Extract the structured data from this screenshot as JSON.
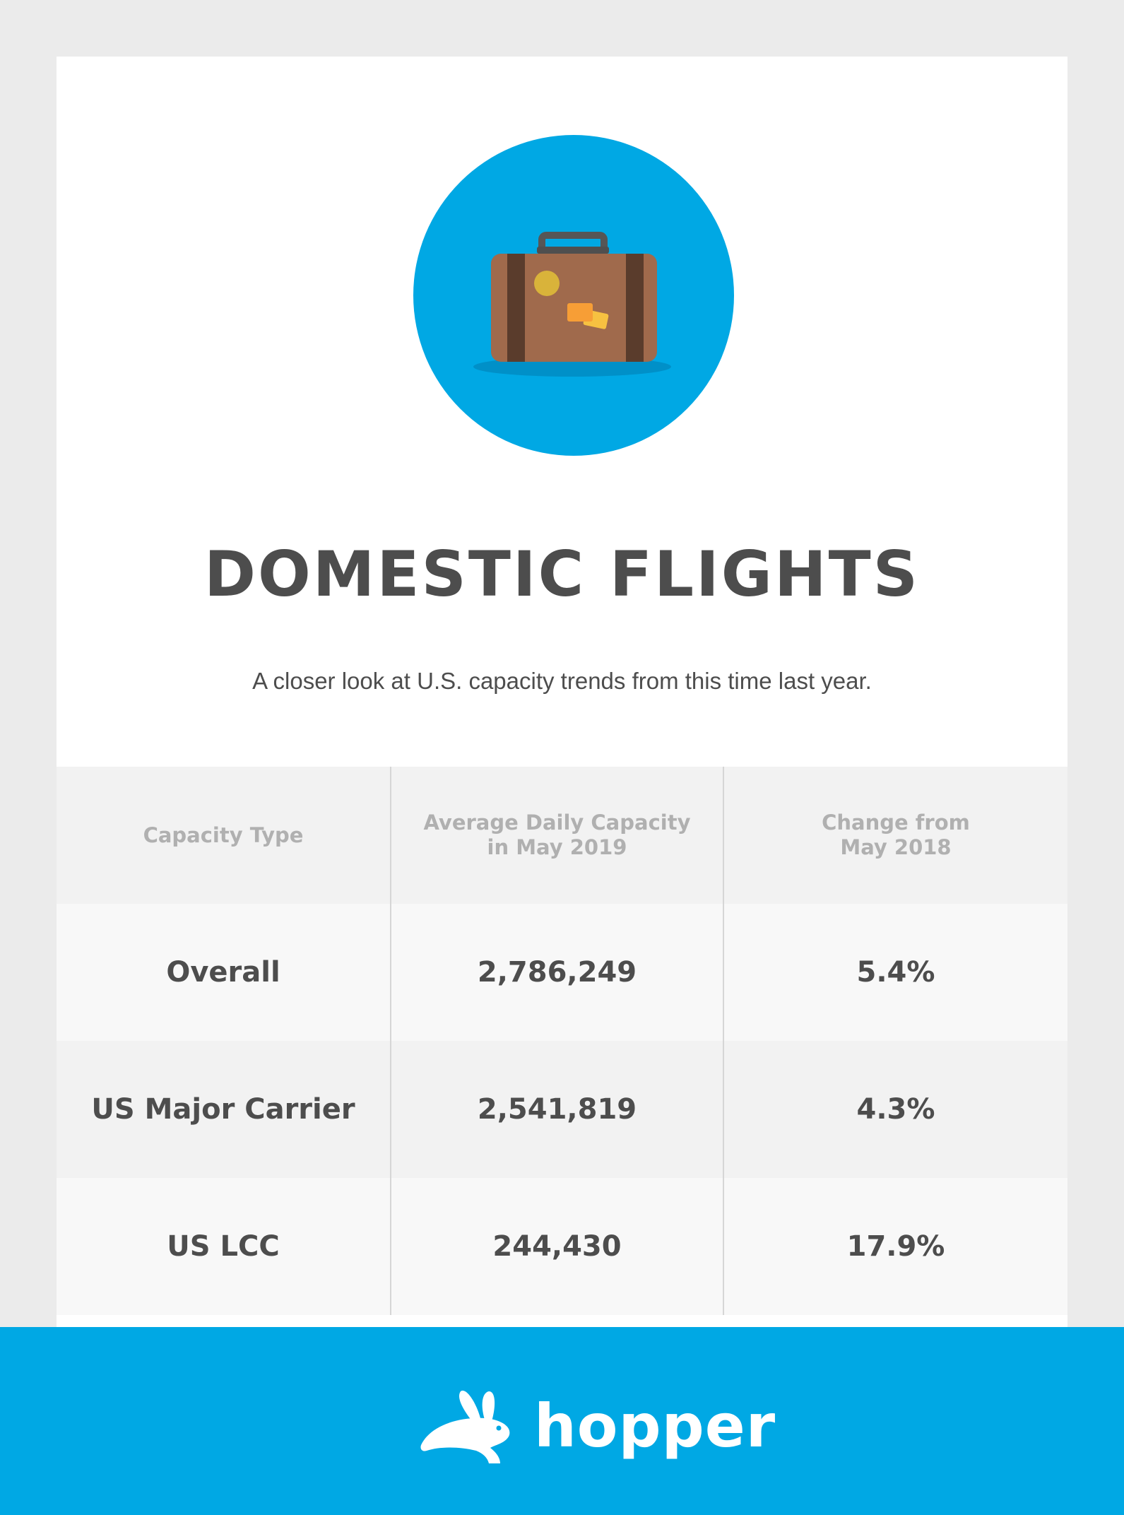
{
  "hero": {
    "icon": "suitcase-icon",
    "circle_color": "#00a8e4"
  },
  "title": "DOMESTIC FLIGHTS",
  "subtitle": "A closer look at U.S. capacity trends from this time last year.",
  "table": {
    "headers": [
      [
        "Capacity Type"
      ],
      [
        "Average Daily Capacity",
        "in May 2019"
      ],
      [
        "Change from",
        "May 2018"
      ]
    ],
    "rows": [
      {
        "type": "Overall",
        "capacity": "2,786,249",
        "change": "5.4%"
      },
      {
        "type": "US Major Carrier",
        "capacity": "2,541,819",
        "change": "4.3%"
      },
      {
        "type": "US LCC",
        "capacity": "244,430",
        "change": "17.9%"
      }
    ]
  },
  "footer": {
    "brand": "hopper",
    "logo_icon": "bunny-icon",
    "color": "#00a8e4"
  }
}
